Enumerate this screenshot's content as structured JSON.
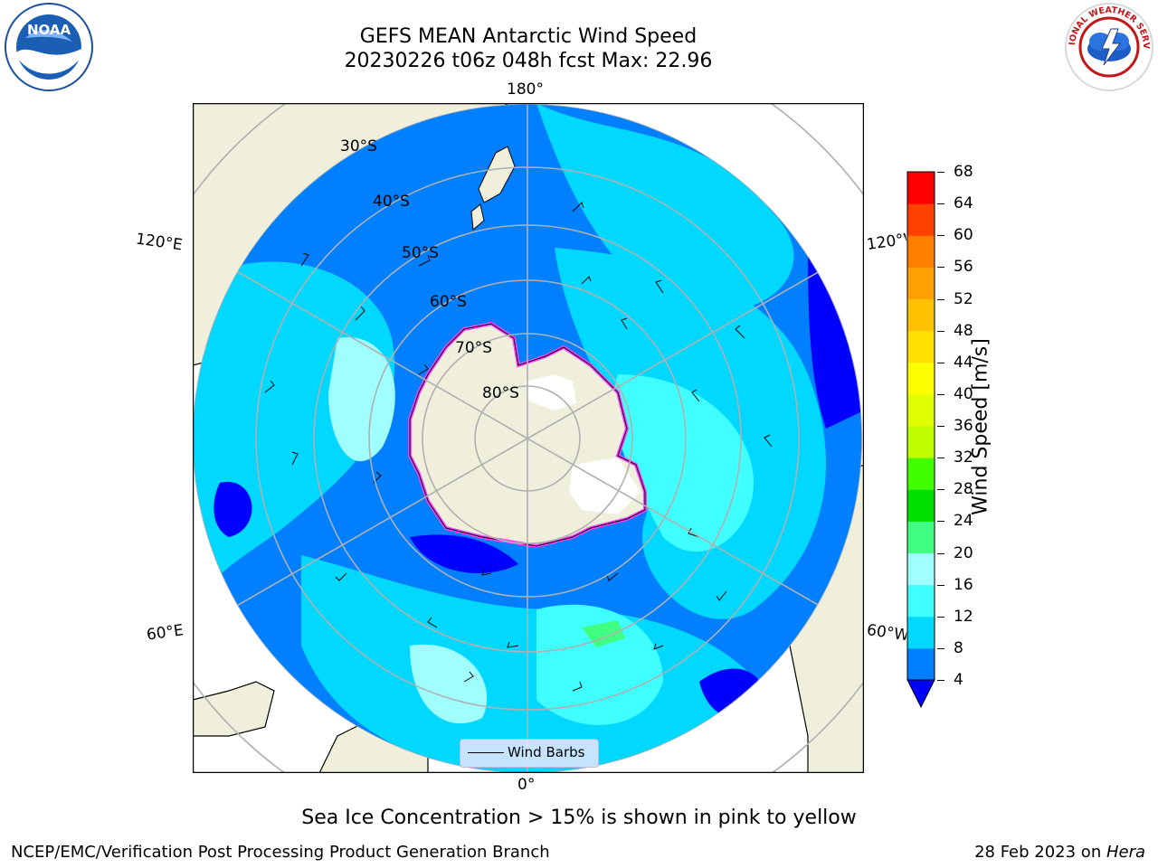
{
  "header": {
    "title_line1": "GEFS MEAN Antarctic Wind Speed",
    "title_line2": "20230226 t06z 048h fcst   Max: 22.96"
  },
  "logos": {
    "left": {
      "name": "noaa-logo",
      "text": "NOAA",
      "ring_text": "NATIONAL OCEANIC AND ATMOSPHERIC ADMINISTRATION · U.S. DEPARTMENT OF COMMERCE"
    },
    "right": {
      "name": "nws-logo",
      "ring_text": "NATIONAL WEATHER SERVICE"
    }
  },
  "map": {
    "longitude_labels": {
      "top": "180°",
      "bottom": "0°",
      "left_upper": "120°E",
      "left_lower": "60°E",
      "right_upper": "120°W",
      "right_lower": "60°W"
    },
    "latitude_labels": [
      "30°S",
      "40°S",
      "50°S",
      "60°S",
      "70°S",
      "80°S"
    ],
    "legend_label": "Wind Barbs",
    "colors": {
      "land": "#efefdc",
      "ocean_dark": "#0000ff",
      "ocean_mid": "#0080ff",
      "ocean_light": "#00ffff",
      "ice": "#ff00ff",
      "grid": "#b0b0b0"
    }
  },
  "colorbar": {
    "label": "Wind Speed [m/s]",
    "ticks": [
      4,
      8,
      12,
      16,
      20,
      24,
      28,
      32,
      36,
      40,
      44,
      48,
      52,
      56,
      60,
      64,
      68
    ],
    "colors": [
      "#0080ff",
      "#00d8ff",
      "#40ffff",
      "#a0ffff",
      "#40ff80",
      "#00e000",
      "#40ff00",
      "#c0ff00",
      "#e0ff00",
      "#ffff00",
      "#ffe000",
      "#ffc000",
      "#ffa000",
      "#ff8000",
      "#ff4000",
      "#ff0000"
    ],
    "extend_color": "#0000ff"
  },
  "captions": {
    "sea_ice": "Sea Ice Concentration > 15% is shown in pink to yellow",
    "credit": "NCEP/EMC/Verification Post Processing Product Generation Branch",
    "date_prefix": "28 Feb 2023 on ",
    "machine": "Hera"
  }
}
